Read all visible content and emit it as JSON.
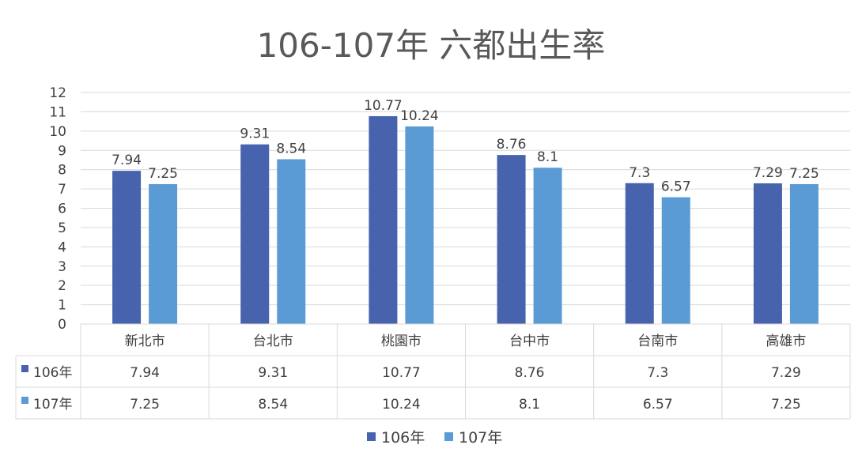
{
  "chart_data": {
    "type": "bar",
    "title": "106-107年 六都出生率",
    "categories": [
      "新北市",
      "台北市",
      "桃園市",
      "台中市",
      "台南市",
      "高雄市"
    ],
    "series": [
      {
        "name": "106年",
        "color": "#4763AE",
        "values": [
          7.94,
          9.31,
          10.77,
          8.76,
          7.3,
          7.29
        ]
      },
      {
        "name": "107年",
        "color": "#5B9BD5",
        "values": [
          7.25,
          8.54,
          10.24,
          8.1,
          6.57,
          7.25
        ]
      }
    ],
    "ylim": [
      0,
      12
    ],
    "yticks": [
      0,
      1,
      2,
      3,
      4,
      5,
      6,
      7,
      8,
      9,
      10,
      11,
      12
    ],
    "grid": true,
    "data_table": true,
    "legend": "bottom"
  }
}
